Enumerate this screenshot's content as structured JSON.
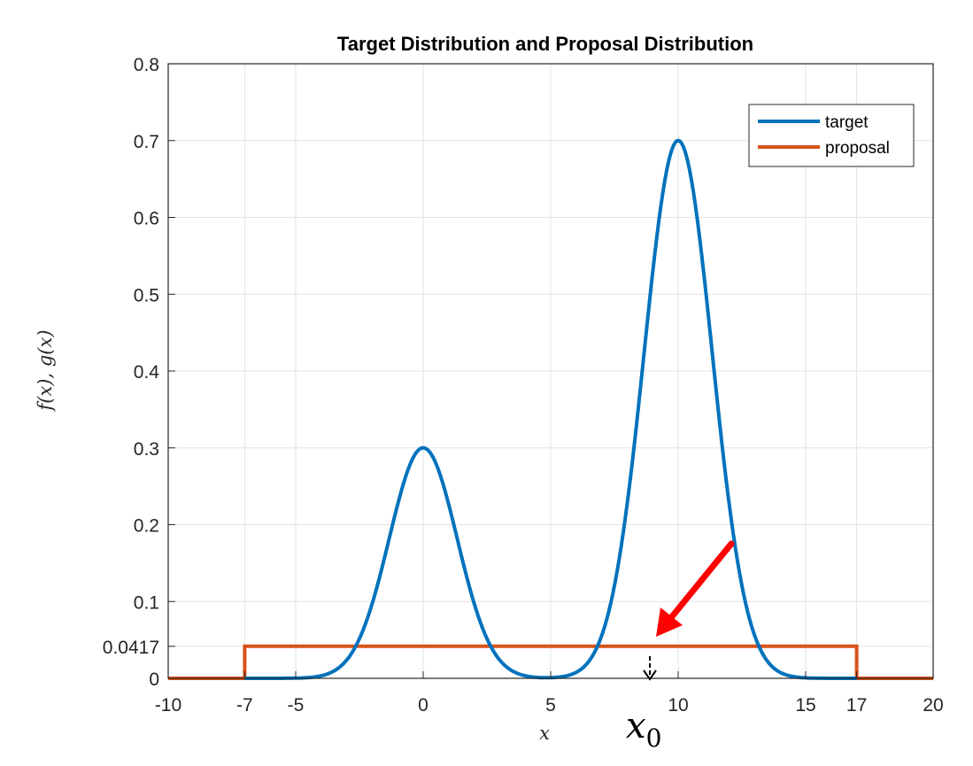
{
  "chart_data": {
    "type": "line",
    "title": "Target Distribution and Proposal Distribution",
    "xlabel": "x",
    "ylabel": "f(x), g(x)",
    "xlim": [
      -10,
      20
    ],
    "ylim": [
      0,
      0.8
    ],
    "xticks": [
      -10,
      -7,
      -5,
      0,
      5,
      10,
      15,
      17,
      20
    ],
    "yticks": [
      0,
      0.0417,
      0.1,
      0.2,
      0.3,
      0.4,
      0.5,
      0.6,
      0.7,
      0.8
    ],
    "grid": true,
    "legend_position": "top-right",
    "series": [
      {
        "name": "target",
        "color": "#0072BD",
        "components": [
          {
            "mean": 0,
            "sd": 1.333,
            "peak": 0.3
          },
          {
            "mean": 10,
            "sd": 1.333,
            "peak": 0.7
          }
        ]
      },
      {
        "name": "proposal",
        "color": "#D95319",
        "uniform": {
          "low": -7,
          "high": 17,
          "height": 0.0417
        }
      }
    ],
    "annotations": [
      {
        "text": "x0",
        "kind": "label",
        "x": 9
      },
      {
        "kind": "red-arrow",
        "color": "#FF0000",
        "points_to_x": 9,
        "points_to_y": 0.0417
      }
    ]
  }
}
